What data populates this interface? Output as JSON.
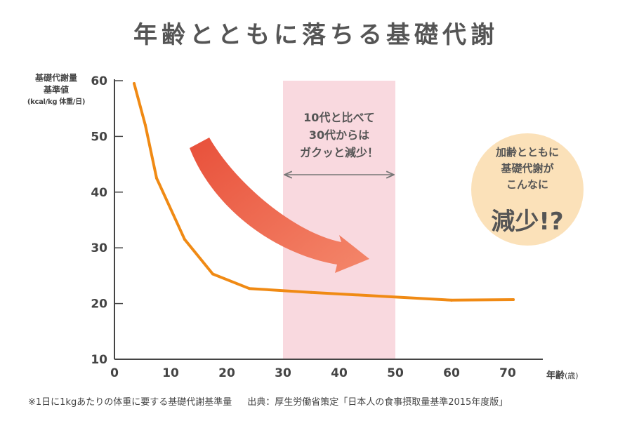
{
  "chart_data": {
    "type": "line",
    "title": "年齢とともに落ちる基礎代謝",
    "ylabel_lines": [
      "基礎代謝量",
      "基準値"
    ],
    "ylabel_unit": "(kcal/kg 体重/日)",
    "xlabel": "年齢",
    "xlabel_unit": "(歳)",
    "xlim": [
      0,
      75
    ],
    "ylim": [
      10,
      60
    ],
    "xticks": [
      0,
      10,
      20,
      30,
      40,
      50,
      60,
      70
    ],
    "yticks": [
      10,
      20,
      30,
      40,
      50,
      60
    ],
    "grid": false,
    "series": [
      {
        "color": "#f08a14",
        "x": [
          3.5,
          5.5,
          7.5,
          12.5,
          17.5,
          24,
          35,
          60,
          71
        ],
        "y": [
          59.5,
          52,
          42.5,
          31.5,
          25.3,
          22.7,
          22.0,
          20.6,
          20.7
        ]
      }
    ],
    "highlight_band": {
      "x_from": 30,
      "x_to": 50,
      "color": "#f9d9df"
    },
    "band_annotation": [
      "10代と比べて",
      "30代からは",
      "ガクッと減少！"
    ],
    "bubble": {
      "lines": [
        "加齢とともに",
        "基礎代謝が",
        "こんなに"
      ],
      "big": "減少!?",
      "color": "#fbe1b9"
    },
    "arrow_gradient": [
      "#e8503a",
      "#f4876b"
    ]
  },
  "footnote": {
    "note": "※1日に1kgあたりの体重に要する基礎代謝基準量",
    "source": "出典：厚生労働省策定「日本人の食事摂取量基準2015年度版」"
  }
}
